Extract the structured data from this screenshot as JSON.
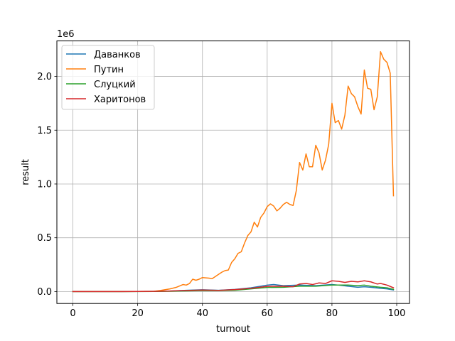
{
  "chart_data": {
    "type": "line",
    "title": "",
    "xlabel": "turnout",
    "ylabel": "result",
    "y_multiplier_label": "1e6",
    "xlim": [
      -4.95,
      103.95
    ],
    "ylim": [
      -111000,
      2330000
    ],
    "x_ticks": [
      0,
      20,
      40,
      60,
      80,
      100
    ],
    "x_tick_labels": [
      "0",
      "20",
      "40",
      "60",
      "80",
      "100"
    ],
    "y_ticks": [
      0,
      500000,
      1000000,
      1500000,
      2000000
    ],
    "y_tick_labels": [
      "0.0",
      "0.5",
      "1.0",
      "1.5",
      "2.0"
    ],
    "grid": true,
    "legend_position": "upper-left",
    "series": [
      {
        "name": "Даванков",
        "color": "#1f77b4",
        "points": [
          [
            0,
            0
          ],
          [
            5,
            0
          ],
          [
            10,
            0
          ],
          [
            15,
            0
          ],
          [
            20,
            1000
          ],
          [
            25,
            2000
          ],
          [
            30,
            5000
          ],
          [
            35,
            12000
          ],
          [
            40,
            17000
          ],
          [
            45,
            12000
          ],
          [
            50,
            20000
          ],
          [
            55,
            35000
          ],
          [
            60,
            60000
          ],
          [
            62,
            65000
          ],
          [
            65,
            55000
          ],
          [
            70,
            60000
          ],
          [
            75,
            55000
          ],
          [
            80,
            65000
          ],
          [
            82,
            60000
          ],
          [
            85,
            50000
          ],
          [
            88,
            40000
          ],
          [
            90,
            45000
          ],
          [
            92,
            40000
          ],
          [
            95,
            30000
          ],
          [
            97,
            25000
          ],
          [
            99,
            15000
          ]
        ]
      },
      {
        "name": "Путин",
        "color": "#ff7f0e",
        "points": [
          [
            0,
            0
          ],
          [
            5,
            0
          ],
          [
            10,
            0
          ],
          [
            15,
            0
          ],
          [
            20,
            1000
          ],
          [
            25,
            3000
          ],
          [
            27,
            10000
          ],
          [
            30,
            25000
          ],
          [
            32,
            40000
          ],
          [
            34,
            65000
          ],
          [
            35,
            60000
          ],
          [
            36,
            75000
          ],
          [
            37,
            115000
          ],
          [
            38,
            105000
          ],
          [
            39,
            115000
          ],
          [
            40,
            130000
          ],
          [
            42,
            125000
          ],
          [
            43,
            120000
          ],
          [
            44,
            140000
          ],
          [
            45,
            160000
          ],
          [
            46,
            180000
          ],
          [
            47,
            195000
          ],
          [
            48,
            200000
          ],
          [
            49,
            270000
          ],
          [
            50,
            305000
          ],
          [
            51,
            355000
          ],
          [
            52,
            370000
          ],
          [
            53,
            450000
          ],
          [
            54,
            520000
          ],
          [
            55,
            555000
          ],
          [
            56,
            645000
          ],
          [
            57,
            600000
          ],
          [
            58,
            690000
          ],
          [
            59,
            730000
          ],
          [
            60,
            790000
          ],
          [
            61,
            815000
          ],
          [
            62,
            795000
          ],
          [
            63,
            750000
          ],
          [
            64,
            775000
          ],
          [
            65,
            810000
          ],
          [
            66,
            830000
          ],
          [
            67,
            810000
          ],
          [
            68,
            800000
          ],
          [
            69,
            940000
          ],
          [
            70,
            1200000
          ],
          [
            71,
            1130000
          ],
          [
            72,
            1280000
          ],
          [
            73,
            1160000
          ],
          [
            74,
            1160000
          ],
          [
            75,
            1360000
          ],
          [
            76,
            1290000
          ],
          [
            77,
            1130000
          ],
          [
            78,
            1220000
          ],
          [
            79,
            1370000
          ],
          [
            80,
            1750000
          ],
          [
            81,
            1570000
          ],
          [
            82,
            1590000
          ],
          [
            83,
            1510000
          ],
          [
            84,
            1640000
          ],
          [
            85,
            1910000
          ],
          [
            86,
            1840000
          ],
          [
            87,
            1810000
          ],
          [
            88,
            1720000
          ],
          [
            89,
            1650000
          ],
          [
            90,
            2060000
          ],
          [
            91,
            1890000
          ],
          [
            92,
            1880000
          ],
          [
            93,
            1690000
          ],
          [
            94,
            1810000
          ],
          [
            95,
            2230000
          ],
          [
            96,
            2160000
          ],
          [
            97,
            2130000
          ],
          [
            98,
            2030000
          ],
          [
            99,
            890000
          ]
        ]
      },
      {
        "name": "Слуцкий",
        "color": "#2ca02c",
        "points": [
          [
            0,
            0
          ],
          [
            5,
            0
          ],
          [
            10,
            0
          ],
          [
            15,
            0
          ],
          [
            20,
            500
          ],
          [
            25,
            1000
          ],
          [
            30,
            3000
          ],
          [
            35,
            6000
          ],
          [
            40,
            9000
          ],
          [
            45,
            8000
          ],
          [
            50,
            12000
          ],
          [
            55,
            25000
          ],
          [
            60,
            38000
          ],
          [
            65,
            40000
          ],
          [
            70,
            50000
          ],
          [
            75,
            50000
          ],
          [
            80,
            60000
          ],
          [
            85,
            60000
          ],
          [
            88,
            55000
          ],
          [
            90,
            60000
          ],
          [
            92,
            50000
          ],
          [
            95,
            40000
          ],
          [
            97,
            35000
          ],
          [
            99,
            20000
          ]
        ]
      },
      {
        "name": "Харитонов",
        "color": "#d62728",
        "points": [
          [
            0,
            0
          ],
          [
            5,
            0
          ],
          [
            10,
            0
          ],
          [
            15,
            0
          ],
          [
            20,
            1000
          ],
          [
            25,
            2000
          ],
          [
            30,
            5000
          ],
          [
            35,
            10000
          ],
          [
            40,
            14000
          ],
          [
            45,
            11000
          ],
          [
            50,
            18000
          ],
          [
            55,
            30000
          ],
          [
            60,
            48000
          ],
          [
            65,
            50000
          ],
          [
            68,
            45000
          ],
          [
            70,
            70000
          ],
          [
            72,
            75000
          ],
          [
            74,
            65000
          ],
          [
            76,
            80000
          ],
          [
            78,
            75000
          ],
          [
            80,
            100000
          ],
          [
            82,
            95000
          ],
          [
            84,
            85000
          ],
          [
            86,
            95000
          ],
          [
            88,
            90000
          ],
          [
            90,
            100000
          ],
          [
            92,
            90000
          ],
          [
            94,
            70000
          ],
          [
            95,
            75000
          ],
          [
            97,
            60000
          ],
          [
            99,
            35000
          ]
        ]
      }
    ]
  }
}
